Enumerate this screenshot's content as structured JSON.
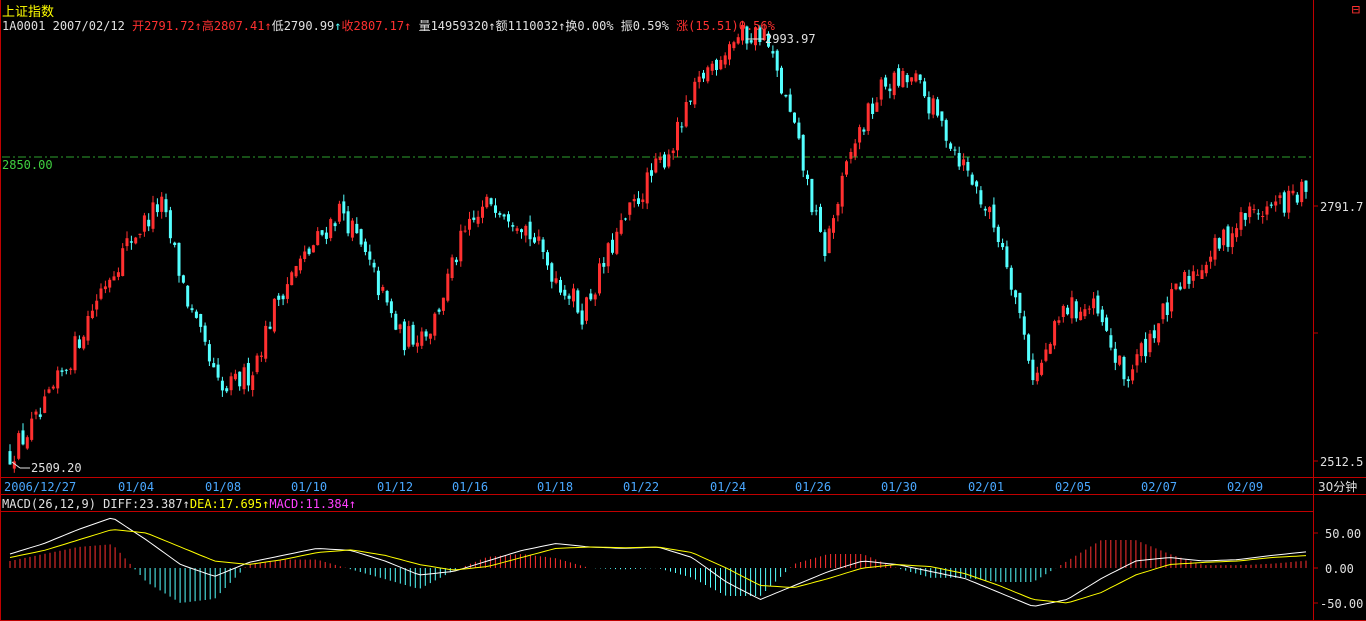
{
  "header": {
    "title": "上证指数",
    "code": "1A0001",
    "date": "2007/02/12",
    "open": "开2791.72",
    "high": "高2807.41",
    "low": "低2790.99",
    "close": "收2807.17",
    "volume": "量14959320",
    "amount": "额1110032",
    "turnover": "换0.00%",
    "amplitude": "振0.59%",
    "change": "涨(15.51)0.56%",
    "maximize_glyph": "⊟"
  },
  "chart_data": [
    {
      "type": "candlestick",
      "title": "上证指数",
      "y_right_ticks": [
        "2791.7",
        "2512.5"
      ],
      "y_left_label": "2850.00",
      "reference_line": 2850.0,
      "max_annotation": "2993.97",
      "min_annotation": "2509.20",
      "x_tick_labels": [
        "2006/12/27",
        "01/04",
        "01/08",
        "01/10",
        "01/12",
        "01/16",
        "01/18",
        "01/22",
        "01/24",
        "01/26",
        "01/30",
        "02/01",
        "02/05",
        "02/07",
        "02/09",
        "30分钟"
      ],
      "ylim": [
        2490,
        3010
      ],
      "close_path": [
        2520,
        2560,
        2625,
        2700,
        2755,
        2795,
        2675,
        2585,
        2610,
        2700,
        2745,
        2790,
        2720,
        2645,
        2660,
        2755,
        2800,
        2775,
        2720,
        2675,
        2750,
        2810,
        2860,
        2935,
        2975,
        2982,
        2878,
        2740,
        2860,
        2925,
        2930,
        2876,
        2815,
        2745,
        2600,
        2680,
        2678,
        2600,
        2660,
        2710,
        2745,
        2782,
        2792,
        2807
      ],
      "close_value": 2807.17
    },
    {
      "type": "macd",
      "title": "MACD(26,12,9)",
      "diff": "DIFF:23.387",
      "dea": "DEA:17.695",
      "macd": "MACD:11.384",
      "y_ticks": [
        "50.00",
        "0.00",
        "-50.00"
      ],
      "ylim": [
        -65,
        75
      ],
      "diff_path": [
        20,
        35,
        55,
        72,
        40,
        5,
        -12,
        8,
        18,
        28,
        25,
        10,
        -10,
        -5,
        10,
        25,
        35,
        30,
        28,
        30,
        15,
        -20,
        -45,
        -25,
        -5,
        10,
        5,
        -5,
        -15,
        -35,
        -55,
        -45,
        -15,
        10,
        15,
        10,
        12,
        18,
        23
      ],
      "dea_path": [
        15,
        25,
        40,
        55,
        50,
        30,
        10,
        5,
        12,
        22,
        26,
        18,
        5,
        -3,
        2,
        15,
        28,
        30,
        29,
        30,
        22,
        0,
        -25,
        -28,
        -15,
        0,
        5,
        2,
        -8,
        -25,
        -45,
        -50,
        -35,
        -10,
        5,
        8,
        10,
        15,
        17.7
      ]
    }
  ],
  "colors": {
    "up": "#ff3030",
    "down": "#54ffff",
    "frame": "#c00000",
    "refline": "#2ea02e",
    "diff_line": "#ffffff",
    "dea_line": "#ffff00"
  }
}
